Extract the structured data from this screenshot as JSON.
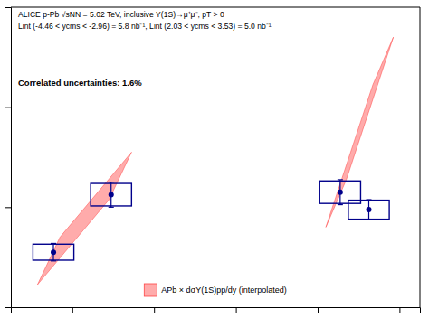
{
  "chart_data": {
    "type": "scatter",
    "xlim": [
      -5.5,
      4.5
    ],
    "ylim": [
      0,
      12
    ],
    "xticks": [
      -4,
      -2,
      0,
      2,
      4
    ],
    "yticks": [
      0,
      4,
      8,
      12
    ],
    "tick_labels": false,
    "grid": false,
    "legend": "lower center",
    "annotations": [
      "ALICE p-Pb √sNN = 5.02 TeV, inclusive Υ(1S)→μ⁺μ⁻, pT > 0",
      "Lint (-4.46 < ycms < -2.96) = 5.8 nb⁻¹, Lint (2.03 < ycms < 3.53) = 5.0 nb⁻¹",
      "Correlated uncertainties: 1.6%"
    ],
    "series": [
      {
        "name": "APb × dσΥ(1S)pp/dy (interpolated)",
        "type": "area",
        "color": "#FF4444",
        "bands": [
          {
            "x": [
              -4.85,
              -4.3,
              -2.55,
              -3.1
            ],
            "y": [
              0.9,
              2.8,
              6.2,
              4.3
            ]
          },
          {
            "x": [
              2.2,
              2.7,
              3.85,
              3.35
            ],
            "y": [
              3.2,
              5.1,
              10.8,
              8.9
            ]
          }
        ]
      },
      {
        "type": "scatter",
        "color": "#00008B",
        "marker": "circle",
        "x": [
          -4.46,
          -3.05,
          2.55,
          3.25
        ],
        "values": [
          2.2,
          4.5,
          4.6,
          3.9
        ],
        "stat_err": [
          0.35,
          0.5,
          0.5,
          0.4
        ],
        "sys_hw": [
          0.5,
          0.5,
          0.5,
          0.5
        ],
        "sys_hh": [
          0.32,
          0.45,
          0.45,
          0.38
        ]
      }
    ]
  }
}
